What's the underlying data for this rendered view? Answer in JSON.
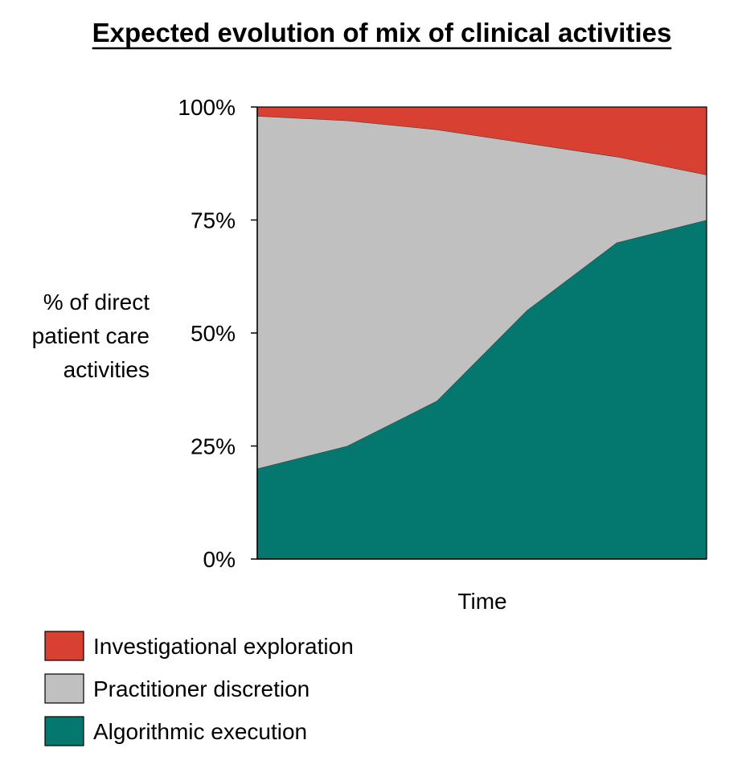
{
  "chart_data": {
    "type": "area",
    "stacked": true,
    "title": "Expected evolution of mix of clinical activities",
    "title_underlined": true,
    "xlabel": "Time",
    "ylabel_lines": [
      "% of direct",
      "patient care",
      "activities"
    ],
    "y_ticks": [
      "0%",
      "25%",
      "50%",
      "75%",
      "100%"
    ],
    "ylim": [
      0,
      100
    ],
    "x": [
      0,
      1,
      2,
      3,
      4,
      5
    ],
    "xlim": [
      0,
      5
    ],
    "x_tick_labels_shown": false,
    "grid": false,
    "legend_position": "bottom-left",
    "series": [
      {
        "name": "Algorithmic execution",
        "color": "#04776F",
        "values": [
          20,
          25,
          35,
          55,
          70,
          75
        ]
      },
      {
        "name": "Practitioner discretion",
        "color": "#C0C0C0",
        "values": [
          78,
          72,
          60,
          37,
          19,
          10
        ]
      },
      {
        "name": "Investigational exploration",
        "color": "#D84031",
        "values": [
          2,
          3,
          5,
          8,
          11,
          15
        ]
      }
    ],
    "legend_order": [
      "Investigational exploration",
      "Practitioner discretion",
      "Algorithmic execution"
    ]
  }
}
